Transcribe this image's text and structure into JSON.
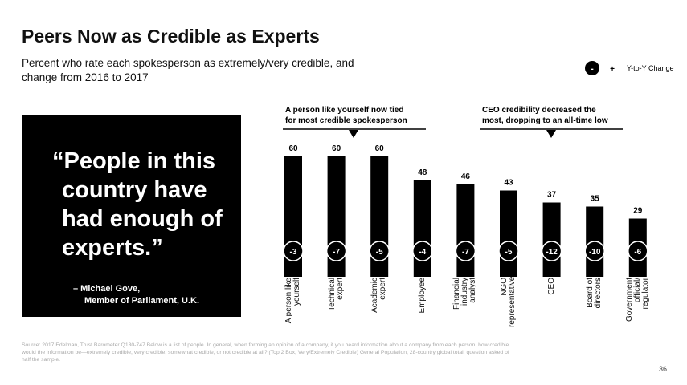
{
  "title": "Peers Now as Credible as Experts",
  "subtitle": "Percent who rate each spokesperson as extremely/very credible, and change from 2016 to 2017",
  "quote": {
    "text": "“People in this country have had enough of experts.”",
    "attribution": [
      "– Michael Gove,",
      "Member of Parliament, U.K."
    ]
  },
  "chart_data": {
    "type": "bar",
    "color": "#000000",
    "categories": [
      "A person like yourself",
      "Technical expert",
      "Academic expert",
      "Employee",
      "Financial industry analyst",
      "NGO representative",
      "CEO",
      "Board of directors",
      "Government official/ regulator"
    ],
    "values": [
      60,
      60,
      60,
      48,
      46,
      43,
      37,
      35,
      29
    ],
    "changes": [
      -3,
      -7,
      -5,
      -4,
      -7,
      -5,
      -12,
      -10,
      -6
    ],
    "legend": {
      "minus": "-",
      "plus": "+",
      "label": "Y-to-Y Change"
    },
    "annotations": [
      {
        "lines": [
          "A person like yourself now tied",
          "for most credible spokesperson"
        ]
      },
      {
        "lines": [
          "CEO credibility decreased the",
          "most, dropping to an all-time low"
        ]
      }
    ]
  },
  "source": "Source: 2017 Edelman, Trust Barometer Q130-747 Below is a list of people. In general, when forming an opinion of a company, if you heard information about a company from each person, how credible would the information be—extremely credible, very credible, somewhat credible, or not credible at all? (Top 2 Box, Very/Extremely Credible) General Population, 28-country global total, question asked of half the sample.",
  "page_number": "36"
}
